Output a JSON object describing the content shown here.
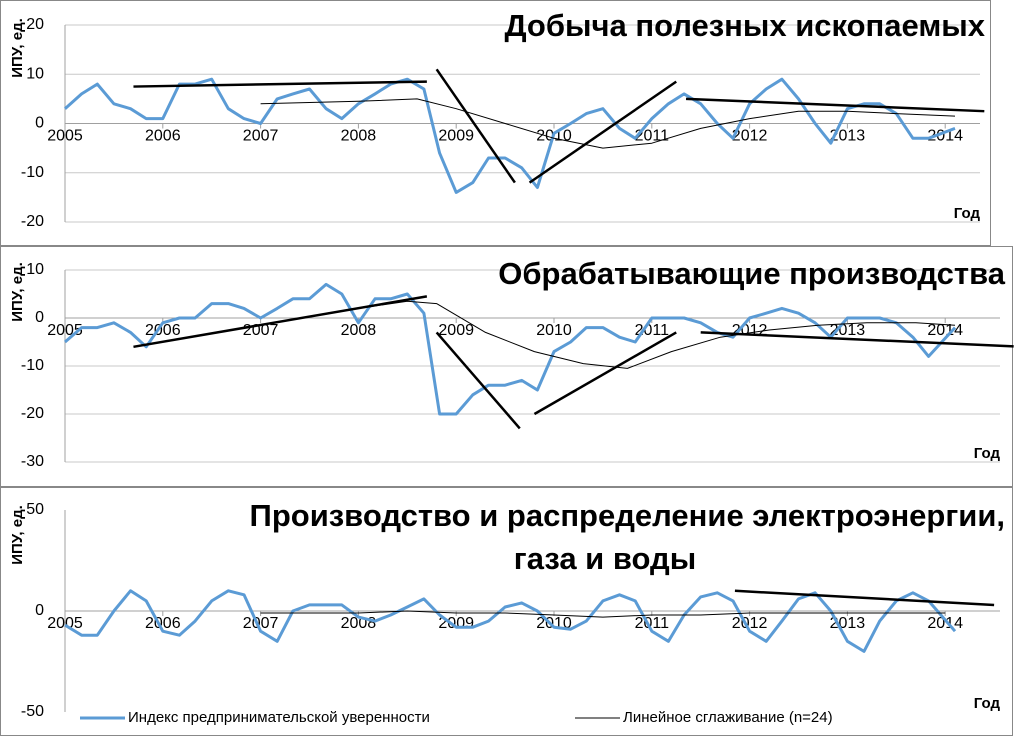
{
  "chart_data": [
    {
      "type": "line",
      "title": [
        "Добыча полезных ископаемых"
      ],
      "ylabel": "ИПУ, ед.",
      "xlabel": "Год",
      "xlim": [
        2005,
        2014.5
      ],
      "ylim": [
        -20,
        20
      ],
      "yticks": [
        -20,
        -10,
        0,
        10,
        20
      ],
      "xticks": [
        2005,
        2006,
        2007,
        2008,
        2009,
        2010,
        2011,
        2012,
        2013,
        2014
      ],
      "grid": true,
      "series": [
        {
          "color": "#5b9bd5",
          "x": [
            2005.0,
            2005.17,
            2005.33,
            2005.5,
            2005.67,
            2005.83,
            2006.0,
            2006.17,
            2006.33,
            2006.5,
            2006.67,
            2006.83,
            2007.0,
            2007.17,
            2007.33,
            2007.5,
            2007.67,
            2007.83,
            2008.0,
            2008.17,
            2008.33,
            2008.5,
            2008.67,
            2008.83,
            2009.0,
            2009.17,
            2009.33,
            2009.5,
            2009.67,
            2009.83,
            2010.0,
            2010.17,
            2010.33,
            2010.5,
            2010.67,
            2010.83,
            2011.0,
            2011.17,
            2011.33,
            2011.5,
            2011.67,
            2011.83,
            2012.0,
            2012.17,
            2012.33,
            2012.5,
            2012.67,
            2012.83,
            2013.0,
            2013.17,
            2013.33,
            2013.5,
            2013.67,
            2013.83,
            2014.1
          ],
          "values": [
            3,
            6,
            8,
            4,
            3,
            1,
            1,
            8,
            8,
            9,
            3,
            1,
            0,
            5,
            6,
            7,
            3,
            1,
            4,
            6,
            8,
            9,
            7,
            -6,
            -14,
            -12,
            -7,
            -7,
            -9,
            -13,
            -2,
            0,
            2,
            3,
            -1,
            -3,
            1,
            4,
            6,
            4,
            0,
            -3,
            4,
            7,
            9,
            5,
            0,
            -4,
            3,
            4,
            4,
            2,
            -3,
            -3,
            -1
          ]
        },
        {
          "color": "#000000",
          "x": [
            2007.0,
            2008.0,
            2008.6,
            2009.0,
            2009.5,
            2010.0,
            2010.5,
            2011.0,
            2011.5,
            2012.0,
            2012.5,
            2013.0,
            2013.5,
            2014.1
          ],
          "values": [
            4,
            4.5,
            5,
            3,
            0,
            -3,
            -5,
            -4,
            -1,
            1,
            2.5,
            2.5,
            2,
            1.5
          ]
        }
      ],
      "trend_lines": {
        "color": "#000000",
        "segments": [
          {
            "x": [
              2005.7,
              2008.7
            ],
            "values": [
              7.5,
              8.5
            ]
          },
          {
            "x": [
              2008.8,
              2009.6
            ],
            "values": [
              11,
              -12
            ]
          },
          {
            "x": [
              2009.75,
              2011.25
            ],
            "values": [
              -12,
              8.5
            ]
          },
          {
            "x": [
              2011.35,
              2014.4
            ],
            "values": [
              5,
              2.5
            ]
          }
        ]
      }
    },
    {
      "type": "line",
      "title": [
        "Обрабатывающие производства"
      ],
      "ylabel": "ИПУ, ед.",
      "xlabel": "Год",
      "xlim": [
        2005,
        2014.5
      ],
      "ylim": [
        -30,
        10
      ],
      "yticks": [
        -30,
        -20,
        -10,
        0,
        10
      ],
      "xticks": [
        2005,
        2006,
        2007,
        2008,
        2009,
        2010,
        2011,
        2012,
        2013,
        2014
      ],
      "grid": true,
      "series": [
        {
          "color": "#5b9bd5",
          "x": [
            2005.0,
            2005.17,
            2005.33,
            2005.5,
            2005.67,
            2005.83,
            2006.0,
            2006.17,
            2006.33,
            2006.5,
            2006.67,
            2006.83,
            2007.0,
            2007.17,
            2007.33,
            2007.5,
            2007.67,
            2007.83,
            2008.0,
            2008.17,
            2008.33,
            2008.5,
            2008.67,
            2008.83,
            2009.0,
            2009.17,
            2009.33,
            2009.5,
            2009.67,
            2009.83,
            2010.0,
            2010.17,
            2010.33,
            2010.5,
            2010.67,
            2010.83,
            2011.0,
            2011.17,
            2011.33,
            2011.5,
            2011.67,
            2011.83,
            2012.0,
            2012.17,
            2012.33,
            2012.5,
            2012.67,
            2012.83,
            2013.0,
            2013.17,
            2013.33,
            2013.5,
            2013.67,
            2013.83,
            2014.1
          ],
          "values": [
            -5,
            -2,
            -2,
            -1,
            -3,
            -6,
            -1,
            0,
            0,
            3,
            3,
            2,
            0,
            2,
            4,
            4,
            7,
            5,
            -1,
            4,
            4,
            5,
            1,
            -20,
            -20,
            -16,
            -14,
            -14,
            -13,
            -15,
            -7,
            -5,
            -2,
            -2,
            -4,
            -5,
            0,
            0,
            0,
            -1,
            -3,
            -4,
            0,
            1,
            2,
            1,
            -1,
            -4,
            0,
            0,
            0,
            -1,
            -4,
            -8,
            -2
          ]
        },
        {
          "color": "#000000",
          "x": [
            2007.67,
            2008.0,
            2008.5,
            2008.8,
            2009.3,
            2009.8,
            2010.3,
            2010.75,
            2011.2,
            2011.7,
            2012.2,
            2012.7,
            2013.2,
            2013.7,
            2014.1
          ],
          "values": [
            1,
            2,
            3.5,
            3,
            -3,
            -7,
            -9.5,
            -10.5,
            -7,
            -4,
            -2.5,
            -1.5,
            -1,
            -1,
            -1.5
          ]
        }
      ],
      "trend_lines": {
        "color": "#000000",
        "segments": [
          {
            "x": [
              2005.7,
              2008.7
            ],
            "values": [
              -6,
              4.5
            ]
          },
          {
            "x": [
              2008.8,
              2009.65
            ],
            "values": [
              -3,
              -23
            ]
          },
          {
            "x": [
              2009.8,
              2011.25
            ],
            "values": [
              -20,
              -3
            ]
          },
          {
            "x": [
              2011.5,
              2014.7
            ],
            "values": [
              -3,
              -5.9
            ]
          }
        ]
      }
    },
    {
      "type": "line",
      "title": [
        "Производство и распределение электроэнергии,",
        "газа и воды"
      ],
      "ylabel": "ИПУ, ед.",
      "xlabel": "Год",
      "xlim": [
        2005,
        2014.5
      ],
      "ylim": [
        -50,
        50
      ],
      "yticks": [
        -50,
        0,
        50
      ],
      "xticks": [
        2005,
        2006,
        2007,
        2008,
        2009,
        2010,
        2011,
        2012,
        2013,
        2014
      ],
      "grid": false,
      "legend": "bottom",
      "series": [
        {
          "name": "Индекс предпринимательской уверенности",
          "color": "#5b9bd5",
          "x": [
            2005.0,
            2005.17,
            2005.33,
            2005.5,
            2005.67,
            2005.83,
            2006.0,
            2006.17,
            2006.33,
            2006.5,
            2006.67,
            2006.83,
            2007.0,
            2007.17,
            2007.33,
            2007.5,
            2007.67,
            2007.83,
            2008.0,
            2008.17,
            2008.33,
            2008.5,
            2008.67,
            2008.83,
            2009.0,
            2009.17,
            2009.33,
            2009.5,
            2009.67,
            2009.83,
            2010.0,
            2010.17,
            2010.33,
            2010.5,
            2010.67,
            2010.83,
            2011.0,
            2011.17,
            2011.33,
            2011.5,
            2011.67,
            2011.83,
            2012.0,
            2012.17,
            2012.33,
            2012.5,
            2012.67,
            2012.83,
            2013.0,
            2013.17,
            2013.33,
            2013.5,
            2013.67,
            2013.83,
            2014.1
          ],
          "values": [
            -7,
            -12,
            -12,
            0,
            10,
            5,
            -10,
            -12,
            -5,
            5,
            10,
            8,
            -10,
            -15,
            0,
            3,
            3,
            3,
            -3,
            -5,
            -2,
            2,
            6,
            -2,
            -8,
            -8,
            -5,
            2,
            4,
            0,
            -8,
            -9,
            -5,
            5,
            8,
            5,
            -10,
            -15,
            -2,
            7,
            9,
            5,
            -10,
            -15,
            -5,
            6,
            9,
            0,
            -15,
            -20,
            -5,
            5,
            9,
            5,
            -10
          ]
        },
        {
          "name": "Линейное сглаживание (n=24)",
          "color": "#000000",
          "x": [
            2007.0,
            2008.0,
            2008.5,
            2009.0,
            2009.5,
            2010.0,
            2010.5,
            2011.0,
            2011.5,
            2012.0,
            2012.5,
            2013.0,
            2013.5,
            2014.0
          ],
          "values": [
            -1,
            -1,
            0,
            -1,
            -1,
            -2,
            -3,
            -2,
            -2,
            -1,
            -1,
            -1,
            -1,
            -1
          ]
        }
      ],
      "trend_lines": {
        "color": "#000000",
        "segments": [
          {
            "x": [
              2011.85,
              2014.5
            ],
            "values": [
              10,
              3
            ]
          }
        ]
      }
    }
  ]
}
